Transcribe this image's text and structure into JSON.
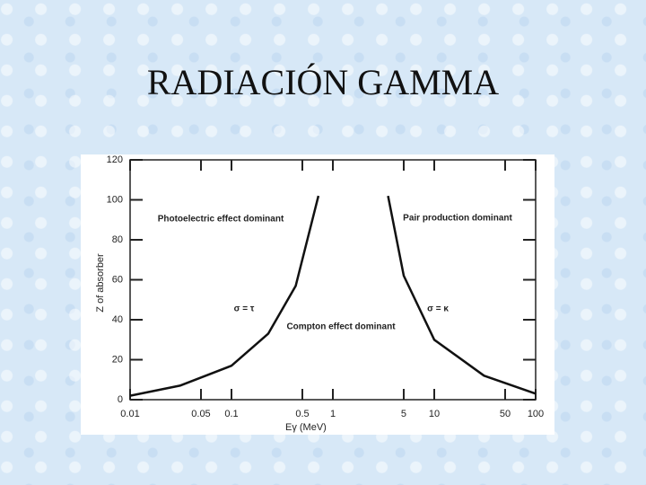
{
  "slide_title": "RADIACIÓN GAMMA",
  "chart_data": {
    "type": "line",
    "xscale": "log",
    "xlabel": "Eγ (MeV)",
    "ylabel": "Z of absorber",
    "xlim": [
      0.01,
      100
    ],
    "xticks": [
      0.01,
      0.05,
      0.1,
      0.5,
      1,
      5,
      10,
      50,
      100
    ],
    "ylim": [
      0,
      120
    ],
    "yticks": [
      0,
      20,
      40,
      60,
      80,
      100,
      120
    ],
    "annotations": [
      "Photoelectric effect dominant",
      "Pair production dominant",
      "Compton effect dominant",
      "σ = τ",
      "σ = κ"
    ],
    "series": [
      {
        "color": "#111111",
        "x": [
          0.01,
          0.031,
          0.1,
          0.23,
          0.43,
          0.72
        ],
        "values": [
          2,
          7,
          17,
          33,
          57,
          102
        ]
      },
      {
        "color": "#111111",
        "x": [
          3.5,
          5,
          10,
          31,
          100
        ],
        "values": [
          102,
          62,
          30,
          12,
          3
        ]
      }
    ]
  }
}
